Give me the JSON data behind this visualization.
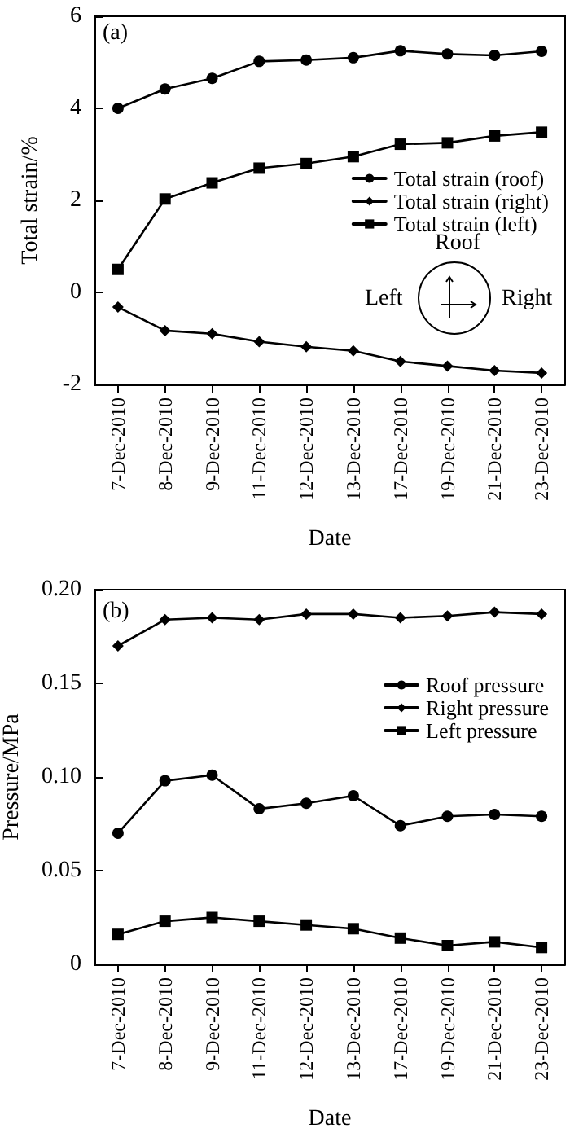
{
  "chart_data": [
    {
      "type": "line",
      "ylabel": "Total strain/%",
      "xlabel": "Date",
      "annotations": [
        "(a)",
        "Roof",
        "Left",
        "Right"
      ],
      "categories": [
        "7-Dec-2010",
        "8-Dec-2010",
        "9-Dec-2010",
        "11-Dec-2010",
        "12-Dec-2010",
        "13-Dec-2010",
        "17-Dec-2010",
        "19-Dec-2010",
        "21-Dec-2010",
        "23-Dec-2010"
      ],
      "series": [
        {
          "name": "Total strain (roof)",
          "color": "#000000",
          "marker": "circle",
          "values": [
            4.0,
            4.42,
            4.65,
            5.02,
            5.05,
            5.1,
            5.25,
            5.18,
            5.15,
            5.24
          ]
        },
        {
          "name": "Total strain (right)",
          "color": "#000000",
          "marker": "diamond",
          "values": [
            -0.32,
            -0.83,
            -0.9,
            -1.07,
            -1.18,
            -1.27,
            -1.5,
            -1.6,
            -1.7,
            -1.75
          ]
        },
        {
          "name": "Total strain (left)",
          "color": "#000000",
          "marker": "square",
          "values": [
            0.5,
            2.03,
            2.38,
            2.7,
            2.8,
            2.95,
            3.22,
            3.25,
            3.4,
            3.48
          ]
        }
      ],
      "ylim": [
        -2,
        6
      ],
      "yticks": [
        -2,
        0,
        2,
        4,
        6
      ],
      "legend": "right",
      "grid": false,
      "line_style": "solid"
    },
    {
      "type": "line",
      "ylabel": "Pressure/MPa",
      "xlabel": "Date",
      "annotations": [
        "(b)"
      ],
      "categories": [
        "7-Dec-2010",
        "8-Dec-2010",
        "9-Dec-2010",
        "11-Dec-2010",
        "12-Dec-2010",
        "13-Dec-2010",
        "17-Dec-2010",
        "19-Dec-2010",
        "21-Dec-2010",
        "23-Dec-2010"
      ],
      "series": [
        {
          "name": "Roof pressure",
          "color": "#000000",
          "marker": "circle",
          "values": [
            0.07,
            0.098,
            0.101,
            0.083,
            0.086,
            0.09,
            0.074,
            0.079,
            0.08,
            0.079
          ]
        },
        {
          "name": "Right pressure",
          "color": "#000000",
          "marker": "diamond",
          "values": [
            0.17,
            0.184,
            0.185,
            0.184,
            0.187,
            0.187,
            0.185,
            0.186,
            0.188,
            0.187
          ]
        },
        {
          "name": "Left pressure",
          "color": "#000000",
          "marker": "square",
          "values": [
            0.016,
            0.023,
            0.025,
            0.023,
            0.021,
            0.019,
            0.014,
            0.01,
            0.012,
            0.009
          ]
        }
      ],
      "ylim": [
        0,
        0.2
      ],
      "yticks": [
        0,
        0.05,
        {
          "value": 0.1,
          "label": "0.10"
        },
        0.15,
        {
          "value": 0.2,
          "label": "0.20"
        }
      ],
      "legend": "top right",
      "grid": false,
      "line_style": "solid"
    }
  ]
}
